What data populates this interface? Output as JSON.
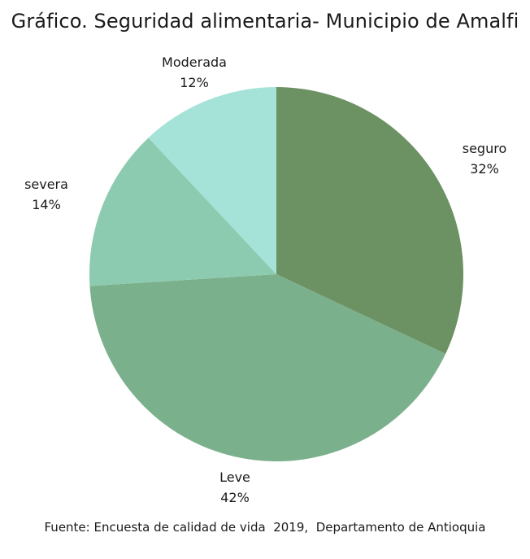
{
  "chart_data": {
    "type": "pie",
    "title": "Gráfico. Seguridad alimentaria- Municipio de Amalfi",
    "slices": [
      {
        "label": "seguro",
        "value": 32,
        "value_label": "32%",
        "color": "#6c9163"
      },
      {
        "label": "Leve",
        "value": 42,
        "value_label": "42%",
        "color": "#7bb08c"
      },
      {
        "label": "severa",
        "value": 14,
        "value_label": "14%",
        "color": "#8ccbb0"
      },
      {
        "label": "Moderada",
        "value": 12,
        "value_label": "12%",
        "color": "#a5e3d9"
      }
    ],
    "start_position": "12 o'clock, clockwise",
    "source": "Fuente: Encuesta de calidad de vida  2019,  Departamento de Antioquia"
  }
}
